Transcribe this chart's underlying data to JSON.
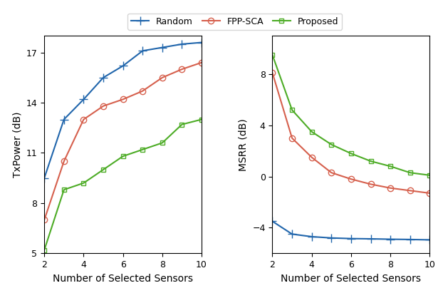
{
  "x": [
    2,
    3,
    4,
    5,
    6,
    7,
    8,
    9,
    10
  ],
  "txpower_random": [
    9.5,
    13.0,
    14.2,
    15.5,
    16.2,
    17.1,
    17.3,
    17.5,
    17.6
  ],
  "txpower_fppsca": [
    7.0,
    10.5,
    13.0,
    13.8,
    14.2,
    14.7,
    15.5,
    16.0,
    16.4
  ],
  "txpower_proposed": [
    5.2,
    8.8,
    9.2,
    10.0,
    10.8,
    11.2,
    11.6,
    12.7,
    13.0
  ],
  "msrr_random": [
    -3.5,
    -4.5,
    -4.7,
    -4.8,
    -4.85,
    -4.87,
    -4.9,
    -4.92,
    -4.95
  ],
  "msrr_fppsca": [
    8.1,
    3.0,
    1.5,
    0.3,
    -0.2,
    -0.6,
    -0.9,
    -1.1,
    -1.3
  ],
  "msrr_proposed": [
    9.5,
    5.2,
    3.5,
    2.5,
    1.8,
    1.2,
    0.8,
    0.3,
    0.1
  ],
  "color_random": "#2166ac",
  "color_fppsca": "#d6604d",
  "color_proposed": "#4dac26",
  "xlabel": "Number of Selected Sensors",
  "ylabel_left": "TxPower (dB)",
  "ylabel_right": "MSRR (dB)",
  "ylim_left": [
    5,
    18
  ],
  "ylim_right": [
    -6,
    11
  ],
  "yticks_left": [
    5,
    8,
    11,
    14,
    17
  ],
  "yticks_right": [
    -4,
    0,
    4,
    8
  ],
  "legend_labels": [
    "Random",
    "FPP-SCA",
    "Proposed"
  ]
}
